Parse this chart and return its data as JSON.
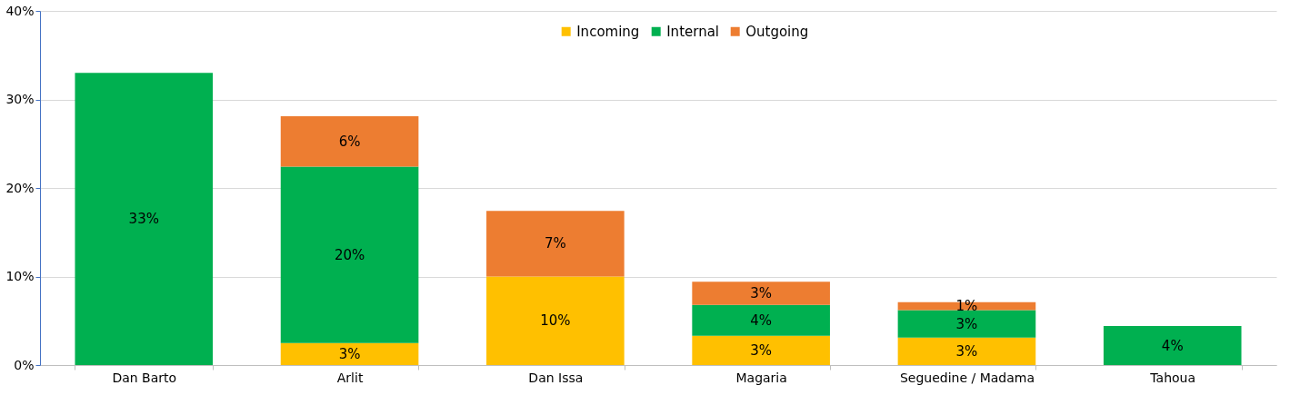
{
  "chart_data": {
    "type": "bar",
    "stacked": true,
    "categories": [
      "Dan Barto",
      "Arlit",
      "Dan Issa",
      "Magaria",
      "Seguedine / Madama",
      "Tahoua"
    ],
    "series": [
      {
        "name": "Incoming",
        "color": "#ffc000",
        "values": [
          null,
          2.5,
          10,
          3.3,
          3.1,
          null
        ],
        "value_labels": [
          null,
          "3%",
          "10%",
          "3%",
          "3%",
          null
        ]
      },
      {
        "name": "Internal",
        "color": "#00b050",
        "values": [
          33,
          19.9,
          null,
          3.5,
          3.1,
          4.4
        ],
        "value_labels": [
          "33%",
          "20%",
          null,
          "4%",
          "3%",
          "4%"
        ]
      },
      {
        "name": "Outgoing",
        "color": "#ed7d31",
        "values": [
          null,
          5.7,
          7.4,
          2.6,
          0.9,
          null
        ],
        "value_labels": [
          null,
          "6%",
          "7%",
          "3%",
          "1%",
          null
        ]
      }
    ],
    "ylim": [
      0,
      40
    ],
    "yticks": [
      {
        "value": 0,
        "label": "0%"
      },
      {
        "value": 10,
        "label": "10%"
      },
      {
        "value": 20,
        "label": "20%"
      },
      {
        "value": 30,
        "label": "30%"
      },
      {
        "value": 40,
        "label": "40%"
      }
    ],
    "grid": "y",
    "legend": "top"
  }
}
